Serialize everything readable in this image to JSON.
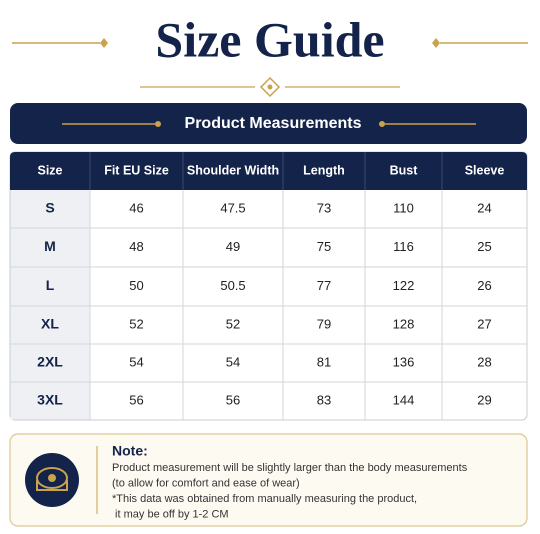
{
  "header": {
    "title": "Size Guide"
  },
  "banner": {
    "title": "Product Measurements"
  },
  "table": {
    "columns": [
      "Size",
      "Fit EU Size",
      "Shoulder Width",
      "Length",
      "Bust",
      "Sleeve"
    ],
    "rows": [
      [
        "S",
        46,
        47.5,
        73,
        110,
        24
      ],
      [
        "M",
        48,
        49,
        75,
        116,
        25
      ],
      [
        "L",
        50,
        50.5,
        77,
        122,
        26
      ],
      [
        "XL",
        52,
        52,
        79,
        128,
        27
      ],
      [
        "2XL",
        54,
        54,
        81,
        136,
        28
      ],
      [
        "3XL",
        56,
        56,
        83,
        144,
        29
      ]
    ]
  },
  "note": {
    "title": "Note:",
    "lines": [
      "Product measurement will be slightly larger than the body measurements",
      "(to allow for comfort and ease of wear)",
      "*This data was obtained from manually measuring the product,",
      " it may be off by 1-2 CM"
    ]
  }
}
